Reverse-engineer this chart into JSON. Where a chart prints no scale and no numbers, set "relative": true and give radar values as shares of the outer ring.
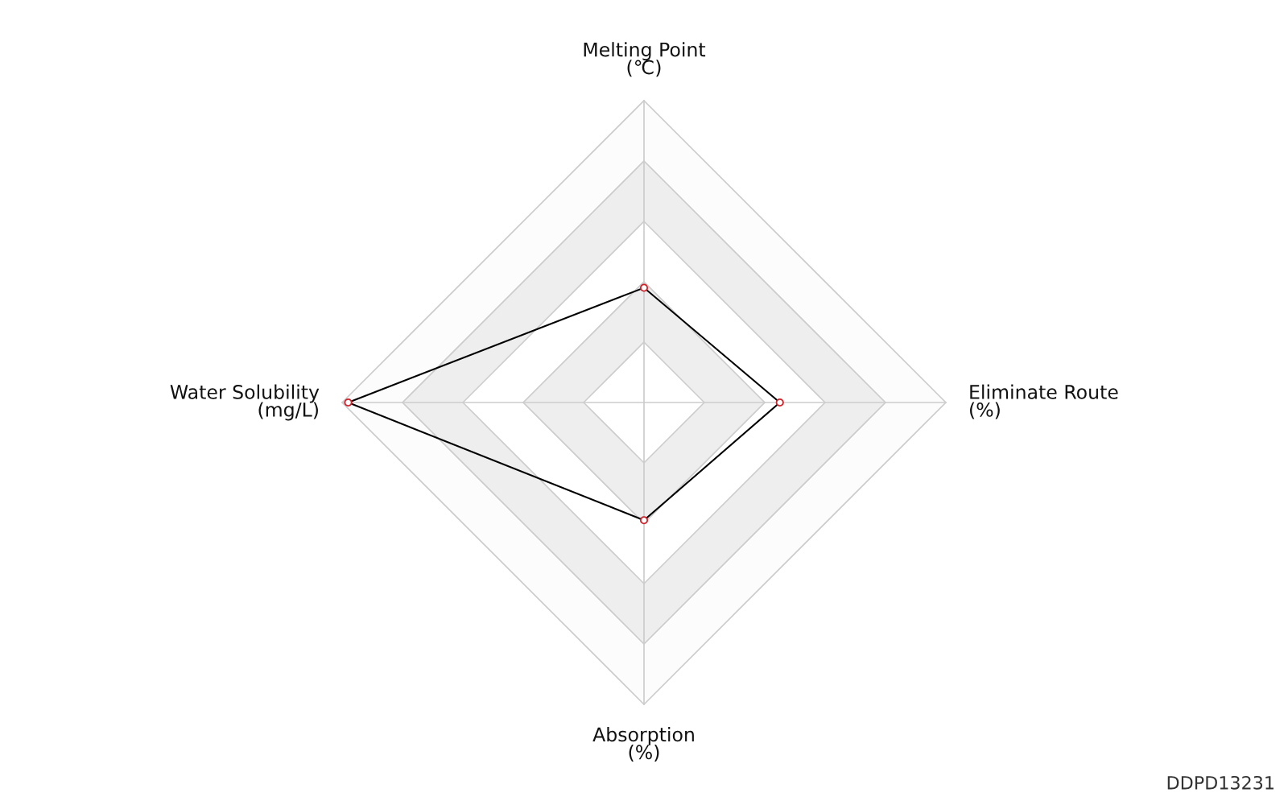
{
  "chart_data": {
    "type": "radar",
    "relative": true,
    "categories": [
      "Melting Point\n(℃)",
      "Eliminate Route\n(%)",
      "Absorption\n(%)",
      "Water Solubility\n(mg/L)"
    ],
    "series": [
      {
        "color": "#000000",
        "values": [
          0.38,
          0.45,
          0.39,
          0.98
        ]
      }
    ],
    "marker": "circle",
    "annotations": [
      "DDPD13231"
    ]
  }
}
